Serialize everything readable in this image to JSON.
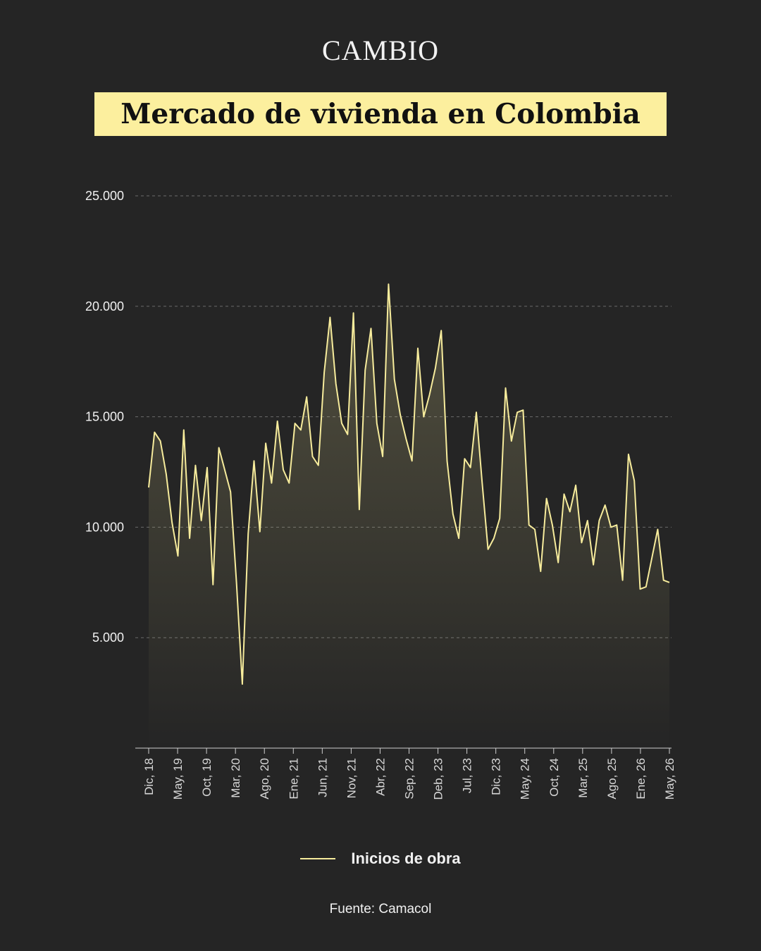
{
  "brand": "CAMBIO",
  "chart_data": {
    "type": "area",
    "title": "Mercado de vivienda en Colombia",
    "x_tick_labels": [
      "Dic, 18",
      "May, 19",
      "Oct, 19",
      "Mar, 20",
      "Ago, 20",
      "Ene, 21",
      "Jun, 21",
      "Nov, 21",
      "Abr, 22",
      "Sep, 22",
      "Deb, 23",
      "Jul, 23",
      "Dic, 23",
      "May, 24",
      "Oct, 24",
      "Mar, 25",
      "Ago, 25",
      "Ene, 26",
      "May, 26"
    ],
    "y_tick_labels": [
      "5.000",
      "10.000",
      "15.000",
      "20.000",
      "25.000"
    ],
    "y_ticks": [
      5000,
      10000,
      15000,
      20000,
      25000
    ],
    "ylim": [
      0,
      25000
    ],
    "grid": true,
    "legend_position": "bottom",
    "series": [
      {
        "name": "Inicios de obra",
        "color": "#f7ec9c",
        "values": [
          11800,
          14300,
          13900,
          12400,
          10200,
          8700,
          14400,
          9500,
          12800,
          10300,
          12700,
          7400,
          13600,
          12600,
          11600,
          7500,
          2900,
          9700,
          13000,
          9800,
          13800,
          12000,
          14800,
          12600,
          12000,
          14700,
          14400,
          15900,
          13200,
          12800,
          17000,
          19500,
          16500,
          14700,
          14200,
          19700,
          10800,
          17100,
          19000,
          14700,
          13200,
          21000,
          16700,
          15100,
          14000,
          13000,
          18100,
          15000,
          16000,
          17200,
          18900,
          13000,
          10600,
          9500,
          13100,
          12700,
          15200,
          12000,
          9000,
          9500,
          10400,
          16300,
          13900,
          15200,
          15300,
          10100,
          9900,
          8000,
          11300,
          10100,
          8400,
          11500,
          10700,
          11900,
          9300,
          10300,
          8300,
          10300,
          11000,
          10000,
          10100,
          7600,
          13300,
          12100,
          7200,
          7300,
          8600,
          9900,
          7600,
          7500
        ]
      }
    ]
  },
  "legend": {
    "label": "Inicios de obra"
  },
  "source": "Fuente: Camacol"
}
